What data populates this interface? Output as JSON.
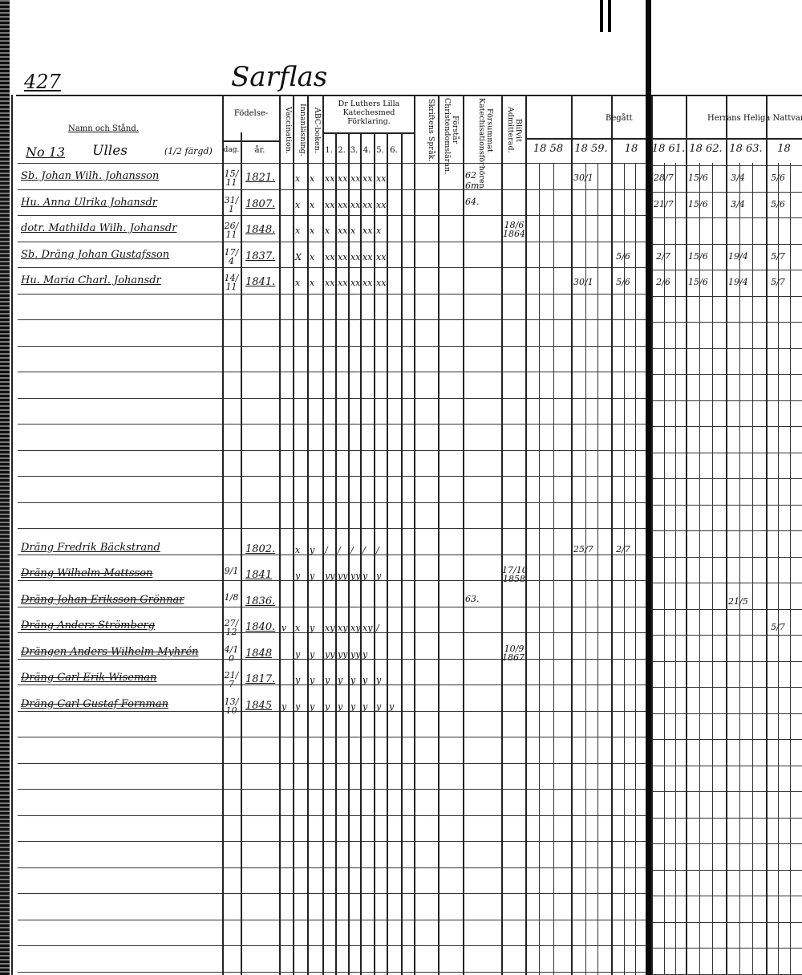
{
  "page_number": "427",
  "place": "Sarflas",
  "household": {
    "label": "No 13",
    "name": "Ulles",
    "note": "(1/2 färgd)"
  },
  "headers": {
    "name": "Namn och Stånd.",
    "birth": "Födelse-",
    "birth_day": "dag.",
    "birth_year": "år.",
    "vaccination": "Vaccination.",
    "innanlasning": "Innanläsning.",
    "abc": "ABC-boken.",
    "catechism": "Dr Luthers Lilla Katechesmed Förklaring.",
    "catechism_parts": [
      "1.",
      "2.",
      "3.",
      "4.",
      "5.",
      "6."
    ],
    "skriftens": "Skriftens Språk.",
    "forstar": "Förstår Christendomsläran.",
    "forsummat": "Försummat Katechisationsförhören.",
    "admitterad": "Blifvit Admitterad.",
    "begatt": "Begått",
    "herrans": "Herrans Heliga Nattvard",
    "years": [
      "18 58",
      "18 59.",
      "18",
      "18 61.",
      "18 62.",
      "18 63.",
      "18"
    ]
  },
  "entries": [
    {
      "name": "Sb. Johan Wilh. Johansson",
      "dag": "15/11",
      "ar": "1821.",
      "marks": [
        "",
        "x",
        "x",
        "xx",
        "xx",
        "xx",
        "xx",
        "xx",
        ""
      ],
      "fors": "62 6m",
      "adm": "",
      "years": [
        "",
        "30/1",
        "",
        "28/7",
        "15/6",
        "3/4",
        "5/6"
      ],
      "struck": false
    },
    {
      "name": "Hu. Anna Ulrika Johansdr",
      "dag": "31/1",
      "ar": "1807.",
      "marks": [
        "",
        "x",
        "x",
        "xx",
        "xx",
        "xx",
        "xx",
        "xx",
        ""
      ],
      "fors": "64.",
      "adm": "",
      "years": [
        "",
        "",
        "",
        "21/7",
        "15/6",
        "3/4",
        "5/6"
      ],
      "struck": false
    },
    {
      "name": "dotr. Mathilda Wilh. Johansdr",
      "dag": "26/11",
      "ar": "1848.",
      "marks": [
        "",
        "x",
        "x",
        "x",
        "xx",
        "x",
        "xx",
        "x",
        ""
      ],
      "fors": "",
      "adm": "18/6 1864",
      "years": [
        "",
        "",
        "",
        "",
        "",
        "",
        ""
      ],
      "struck": false
    },
    {
      "name": "Sb. Dräng Johan Gustafsson",
      "dag": "17/4",
      "ar": "1837.",
      "marks": [
        "",
        "X",
        "x",
        "xx",
        "xx",
        "xx",
        "xx",
        "xx",
        ""
      ],
      "fors": "",
      "adm": "",
      "years": [
        "",
        "",
        "5/6",
        "2/7",
        "15/6",
        "19/4",
        "5/7"
      ],
      "struck": false
    },
    {
      "name": "Hu. Maria Charl. Johansdr",
      "dag": "14/11",
      "ar": "1841.",
      "marks": [
        "",
        "x",
        "x",
        "xx",
        "xx",
        "xx",
        "xx",
        "xx",
        ""
      ],
      "fors": "",
      "adm": "",
      "years": [
        "",
        "30/1",
        "5/6",
        "2/6",
        "15/6",
        "19/4",
        "5/7"
      ],
      "struck": false
    },
    {
      "name": "Dräng Fredrik Bäckstrand",
      "dag": "",
      "ar": "1802.",
      "marks": [
        "",
        "x",
        "y",
        "/",
        "/",
        "/",
        "/",
        "/",
        ""
      ],
      "fors": "",
      "adm": "",
      "years": [
        "",
        "25/7",
        "2/7",
        "",
        "",
        "",
        ""
      ],
      "struck": false
    },
    {
      "name": "Dräng Wilhelm Mattsson",
      "dag": "9/1",
      "ar": "1841",
      "marks": [
        "",
        "y",
        "y",
        "yy",
        "yy",
        "yy",
        "y",
        "y",
        ""
      ],
      "fors": "",
      "adm": "17/10 1858",
      "years": [
        "",
        "",
        "",
        "",
        "",
        "",
        ""
      ],
      "struck": true
    },
    {
      "name": "Dräng Johan Eriksson Grönnar",
      "dag": "1/8",
      "ar": "1836.",
      "marks": [
        "",
        "",
        "",
        "",
        "",
        "",
        "",
        "",
        ""
      ],
      "fors": "63.",
      "adm": "",
      "years": [
        "",
        "",
        "",
        "",
        "",
        "21/5",
        ""
      ],
      "struck": true
    },
    {
      "name": "Dräng Anders Strömberg",
      "dag": "27/12",
      "ar": "1840.",
      "marks": [
        "v",
        "x",
        "y",
        "xy",
        "xy",
        "xy",
        "xy",
        "/",
        ""
      ],
      "fors": "",
      "adm": "",
      "years": [
        "",
        "",
        "",
        "",
        "",
        "",
        "5/7"
      ],
      "struck": true
    },
    {
      "name": "Drängen Anders Wilhelm Myhrén",
      "dag": "4/10",
      "ar": "1848",
      "marks": [
        "",
        "y",
        "y",
        "yy",
        "yy",
        "yy",
        "y",
        ""
      ],
      "fors": "",
      "adm": "10/9 1867.",
      "years": [
        "",
        "",
        "",
        "",
        "",
        "",
        ""
      ],
      "struck": true
    },
    {
      "name": "Dräng Carl Erik Wiseman",
      "dag": "21/7",
      "ar": "1817.",
      "marks": [
        "",
        "y",
        "y",
        "y",
        "y",
        "y",
        "y",
        "y",
        ""
      ],
      "fors": "",
      "adm": "",
      "years": [
        "",
        "",
        "",
        "",
        "",
        "",
        ""
      ],
      "struck": true
    },
    {
      "name": "Dräng Carl Gustaf Fornman",
      "dag": "13/10",
      "ar": "1845",
      "marks": [
        "y",
        "y",
        "y",
        "y",
        "y",
        "y",
        "y",
        "y",
        "y"
      ],
      "fors": "",
      "adm": "",
      "years": [
        "",
        "",
        "",
        "",
        "",
        "",
        ""
      ],
      "struck": true
    }
  ]
}
